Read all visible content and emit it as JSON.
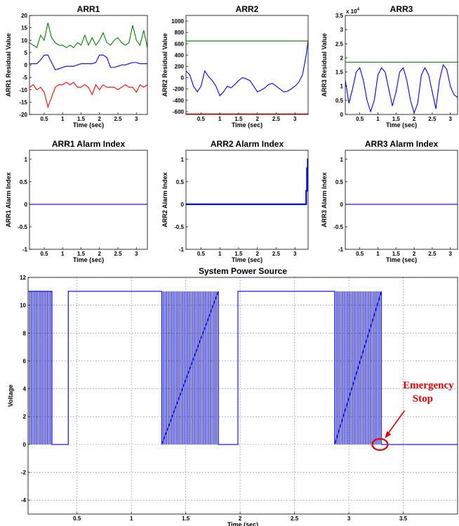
{
  "chart_data": [
    {
      "type": "line",
      "title": "ARR1",
      "xlabel": "Time (sec)",
      "ylabel": "ARR1 Residual Value",
      "xlim": [
        0.1,
        3.3
      ],
      "ylim": [
        -20,
        20
      ],
      "xticks": [
        "0.5",
        "1",
        "1.5",
        "2",
        "2.5",
        "3"
      ],
      "yticks": [
        "20",
        "15",
        "10",
        "5",
        "0",
        "-5",
        "-10",
        "-15",
        "-20"
      ],
      "grid": false,
      "series": [
        {
          "color": "#008000",
          "x": [
            0.1,
            0.2,
            0.3,
            0.4,
            0.5,
            0.6,
            0.7,
            0.8,
            0.9,
            1.0,
            1.1,
            1.2,
            1.3,
            1.4,
            1.5,
            1.6,
            1.7,
            1.8,
            1.9,
            2.0,
            2.1,
            2.2,
            2.3,
            2.4,
            2.5,
            2.6,
            2.7,
            2.8,
            2.9,
            3.0,
            3.1,
            3.2,
            3.3
          ],
          "y": [
            9,
            8,
            7,
            12,
            10,
            17,
            11,
            9,
            8,
            8,
            7,
            8,
            7,
            9,
            8,
            12,
            8,
            11,
            8,
            10,
            13,
            9,
            8,
            10,
            11,
            9,
            8,
            9,
            16,
            10,
            8,
            14,
            7
          ]
        },
        {
          "color": "#0000ff",
          "x": [
            0.1,
            0.2,
            0.3,
            0.4,
            0.5,
            0.6,
            0.7,
            0.8,
            0.9,
            1.0,
            1.1,
            1.2,
            1.3,
            1.4,
            1.5,
            1.6,
            1.7,
            1.8,
            1.9,
            2.0,
            2.1,
            2.2,
            2.3,
            2.4,
            2.5,
            2.6,
            2.7,
            2.8,
            2.9,
            3.0,
            3.1,
            3.2,
            3.3
          ],
          "y": [
            0.5,
            0.5,
            0.5,
            2,
            4,
            4,
            1,
            -2,
            -1.5,
            -1,
            -0.5,
            -0.5,
            -0.5,
            0,
            0.5,
            0.5,
            0.5,
            0.5,
            1,
            4,
            4,
            3,
            -1,
            -1,
            -0.5,
            0,
            0,
            0.5,
            1,
            1,
            0.5,
            0.5,
            0.5
          ]
        },
        {
          "color": "#ff0000",
          "x": [
            0.1,
            0.2,
            0.3,
            0.4,
            0.5,
            0.6,
            0.7,
            0.8,
            0.9,
            1.0,
            1.1,
            1.2,
            1.3,
            1.4,
            1.5,
            1.6,
            1.7,
            1.8,
            1.9,
            2.0,
            2.1,
            2.2,
            2.3,
            2.4,
            2.5,
            2.6,
            2.7,
            2.8,
            2.9,
            3.0,
            3.1,
            3.2,
            3.3
          ],
          "y": [
            -9,
            -8,
            -10,
            -9,
            -11,
            -17,
            -13,
            -9,
            -8,
            -8,
            -7,
            -8,
            -7,
            -9,
            -9,
            -8,
            -9,
            -12,
            -8,
            -10,
            -8,
            -9,
            -9,
            -9,
            -10,
            -9,
            -8,
            -9,
            -9,
            -11,
            -8,
            -9,
            -8
          ]
        }
      ]
    },
    {
      "type": "line",
      "title": "ARR2",
      "xlabel": "Time (sec)",
      "ylabel": "ARR2 Residual Value",
      "xlim": [
        0.1,
        3.35
      ],
      "ylim": [
        -650,
        1100
      ],
      "xticks": [
        "0.5",
        "1",
        "1.5",
        "2",
        "2.5",
        "3"
      ],
      "yticks": [
        "1000",
        "800",
        "600",
        "400",
        "200",
        "0",
        "-200",
        "-400",
        "-600"
      ],
      "grid": false,
      "series": [
        {
          "color": "#008000",
          "x": [
            0.1,
            3.35
          ],
          "y": [
            650,
            650
          ]
        },
        {
          "color": "#ff0000",
          "x": [
            0.1,
            3.35
          ],
          "y": [
            -640,
            -640
          ]
        },
        {
          "color": "#0000ff",
          "x": [
            0.1,
            0.2,
            0.3,
            0.4,
            0.5,
            0.6,
            0.7,
            0.8,
            0.9,
            1.0,
            1.1,
            1.2,
            1.3,
            1.4,
            1.5,
            1.6,
            1.7,
            1.8,
            1.9,
            2.0,
            2.1,
            2.2,
            2.3,
            2.4,
            2.5,
            2.6,
            2.7,
            2.8,
            2.9,
            3.0,
            3.1,
            3.2,
            3.3,
            3.35
          ],
          "y": [
            120,
            50,
            -150,
            -250,
            -150,
            120,
            20,
            -50,
            -150,
            -320,
            -250,
            -150,
            -180,
            -120,
            -50,
            0,
            -20,
            -50,
            -150,
            -250,
            -220,
            -180,
            -120,
            -100,
            -150,
            -200,
            -250,
            -240,
            -200,
            -150,
            -80,
            50,
            400,
            650
          ]
        }
      ]
    },
    {
      "type": "line",
      "title": "ARR3",
      "xlabel": "Time (sec)",
      "ylabel": "ARR3 Residual Value",
      "axis_exponent": "x 10^4",
      "xlim": [
        0.1,
        3.2
      ],
      "ylim": [
        0,
        35000
      ],
      "xticks": [
        "0.5",
        "1",
        "1.5",
        "2",
        "2.5",
        "3"
      ],
      "yticks": [
        "3.5",
        "3",
        "2.5",
        "2",
        "1.5",
        "1",
        "0.5",
        "0"
      ],
      "grid": false,
      "series": [
        {
          "color": "#008000",
          "x": [
            0.1,
            3.2
          ],
          "y": [
            18500,
            18500
          ]
        },
        {
          "color": "#0000ff",
          "x": [
            0.1,
            0.2,
            0.3,
            0.4,
            0.5,
            0.6,
            0.7,
            0.8,
            0.9,
            1.0,
            1.1,
            1.2,
            1.3,
            1.4,
            1.5,
            1.6,
            1.7,
            1.8,
            1.9,
            2.0,
            2.1,
            2.2,
            2.3,
            2.4,
            2.5,
            2.6,
            2.7,
            2.8,
            2.9,
            3.0,
            3.1,
            3.2
          ],
          "y": [
            12000,
            4000,
            9000,
            15000,
            16500,
            12000,
            5000,
            1000,
            5000,
            14000,
            16500,
            15000,
            9000,
            3000,
            8000,
            15000,
            16500,
            12000,
            5000,
            500,
            4000,
            14000,
            16500,
            14000,
            8000,
            2000,
            12000,
            17500,
            16000,
            10000,
            7000,
            6000
          ]
        }
      ]
    },
    {
      "type": "line",
      "title": "ARR1 Alarm Index",
      "xlabel": "Time (sec)",
      "ylabel": "ARR1 Alarm Index",
      "xlim": [
        0.1,
        3.3
      ],
      "ylim": [
        -1,
        1.2
      ],
      "xticks": [
        "0.5",
        "1",
        "1.5",
        "2",
        "2.5",
        "3"
      ],
      "yticks": [
        "1",
        "0.5",
        "0",
        "-0.5",
        "-1"
      ],
      "grid": false,
      "series": [
        {
          "color": "#0000ff",
          "x": [
            0.1,
            3.3
          ],
          "y": [
            0,
            0
          ]
        }
      ]
    },
    {
      "type": "line",
      "title": "ARR2 Alarm Index",
      "xlabel": "Time (sec)",
      "ylabel": "ARR2 Alarm Index",
      "xlim": [
        0.1,
        3.35
      ],
      "ylim": [
        -1,
        1.2
      ],
      "xticks": [
        "0.5",
        "1",
        "1.5",
        "2",
        "2.5",
        "3"
      ],
      "yticks": [
        "1",
        "0.5",
        "0",
        "-0.5",
        "-1"
      ],
      "grid": false,
      "series": [
        {
          "color": "#0000ff",
          "x": [
            0.1,
            3.3,
            3.3,
            3.32,
            3.32,
            3.34,
            3.34,
            3.35
          ],
          "y": [
            0,
            0,
            0.3,
            0.3,
            0.8,
            0.8,
            1,
            1
          ]
        }
      ]
    },
    {
      "type": "line",
      "title": "ARR3 Alarm Index",
      "xlabel": "Time (sec)",
      "ylabel": "ARR3 Alarm Index",
      "xlim": [
        0.1,
        3.2
      ],
      "ylim": [
        -1,
        1.2
      ],
      "xticks": [
        "0.5",
        "1",
        "1.5",
        "2",
        "2.5",
        "3"
      ],
      "yticks": [
        "1",
        "0.5",
        "0",
        "-0.5",
        "-1"
      ],
      "grid": false,
      "series": [
        {
          "color": "#0000ff",
          "x": [
            0.1,
            3.2
          ],
          "y": [
            0,
            0
          ]
        }
      ]
    },
    {
      "type": "line",
      "title": "System Power Source",
      "xlabel": "Time (sec)",
      "ylabel": "Voltage",
      "xlim": [
        0.05,
        4.0
      ],
      "ylim": [
        -5,
        12
      ],
      "xticks": [
        "0.5",
        "1",
        "1.5",
        "2",
        "2.5",
        "3",
        "3.5"
      ],
      "yticks": [
        "12",
        "10",
        "8",
        "6",
        "4",
        "2",
        "0",
        "-2",
        "-4"
      ],
      "grid": true,
      "switching_bursts": [
        [
          0.05,
          0.27
        ],
        [
          1.28,
          1.8
        ],
        [
          2.87,
          3.3
        ]
      ],
      "series": [
        {
          "color": "#0000ff",
          "x": [
            0.05,
            0.27,
            0.27,
            0.42,
            0.42,
            1.28,
            1.28,
            1.8,
            1.8,
            1.98,
            1.98,
            2.87,
            2.87,
            3.3,
            3.3,
            4.0
          ],
          "y": [
            11,
            11,
            0,
            0,
            11,
            11,
            0,
            11,
            0,
            0,
            11,
            11,
            0,
            11,
            0,
            0
          ]
        }
      ],
      "annotation": {
        "text_line1": "Emergency",
        "text_line2": "Stop",
        "color": "#e00000",
        "x": 3.37,
        "y": 0
      }
    }
  ]
}
